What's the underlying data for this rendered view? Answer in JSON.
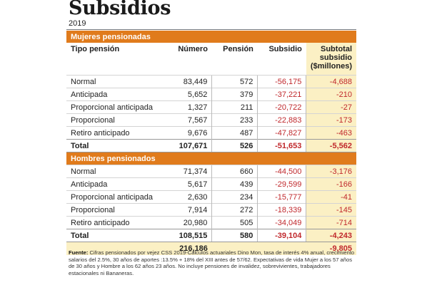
{
  "title": "Subsidios",
  "year": "2019",
  "columns": {
    "tipo": "Tipo pensión",
    "numero": "Número",
    "pension": "Pensión",
    "subsidio": "Subsidio",
    "subtotal_l1": "Subtotal",
    "subtotal_l2": "subsidio",
    "subtotal_l3": "($millones)"
  },
  "mujeres": {
    "title": "Mujeres pensionadas",
    "rows": [
      {
        "tipo": "Normal",
        "numero": "83,449",
        "pension": "572",
        "subsidio": "-56,175",
        "subtotal": "-4,688"
      },
      {
        "tipo": "Anticipada",
        "numero": "5,652",
        "pension": "379",
        "subsidio": "-37,221",
        "subtotal": "-210"
      },
      {
        "tipo": "Proporcional anticipada",
        "numero": "1,327",
        "pension": "211",
        "subsidio": "-20,722",
        "subtotal": "-27"
      },
      {
        "tipo": "Proporcional",
        "numero": "7,567",
        "pension": "233",
        "subsidio": "-22,883",
        "subtotal": "-173"
      },
      {
        "tipo": "Retiro anticipado",
        "numero": "9,676",
        "pension": "487",
        "subsidio": "-47,827",
        "subtotal": "-463"
      }
    ],
    "total": {
      "tipo": "Total",
      "numero": "107,671",
      "pension": "526",
      "subsidio": "-51,653",
      "subtotal": "-5,562"
    }
  },
  "hombres": {
    "title": "Hombres pensionados",
    "rows": [
      {
        "tipo": "Normal",
        "numero": "71,374",
        "pension": "660",
        "subsidio": "-44,500",
        "subtotal": "-3,176"
      },
      {
        "tipo": "Anticipada",
        "numero": "5,617",
        "pension": "439",
        "subsidio": "-29,599",
        "subtotal": "-166"
      },
      {
        "tipo": "Proporcional anticipada",
        "numero": "2,630",
        "pension": "234",
        "subsidio": "-15,777",
        "subtotal": "-41"
      },
      {
        "tipo": "Proporcional",
        "numero": "7,914",
        "pension": "272",
        "subsidio": "-18,339",
        "subtotal": "-145"
      },
      {
        "tipo": "Retiro anticipado",
        "numero": "20,980",
        "pension": "505",
        "subsidio": "-34,049",
        "subtotal": "-714"
      }
    ],
    "total": {
      "tipo": "Total",
      "numero": "108,515",
      "pension": "580",
      "subsidio": "-39,104",
      "subtotal": "-4,243"
    }
  },
  "grand": {
    "numero": "216,186",
    "subtotal": "-9,805"
  },
  "footnote": {
    "label": "Fuente:",
    "text": "Cifras pensionados por vejez CSS 2019-Cálculos actuariales Dino Mon, tasa de interés 4% anual, crecimiento salarios del 2.5%, 30 años de aportes :13.5% + 18% del XIII antes de 57/62. Expectativas de vida Mujer a los 57 años de 30 años y Hombre a los 62 años 23 años. No incluye pensiones de invalidez, sobrevivientes, trabajadores estacionales ni Bananeras."
  },
  "colors": {
    "section": "#e07b1c",
    "highlight": "#fbf0c4",
    "negative": "#c0282c"
  }
}
